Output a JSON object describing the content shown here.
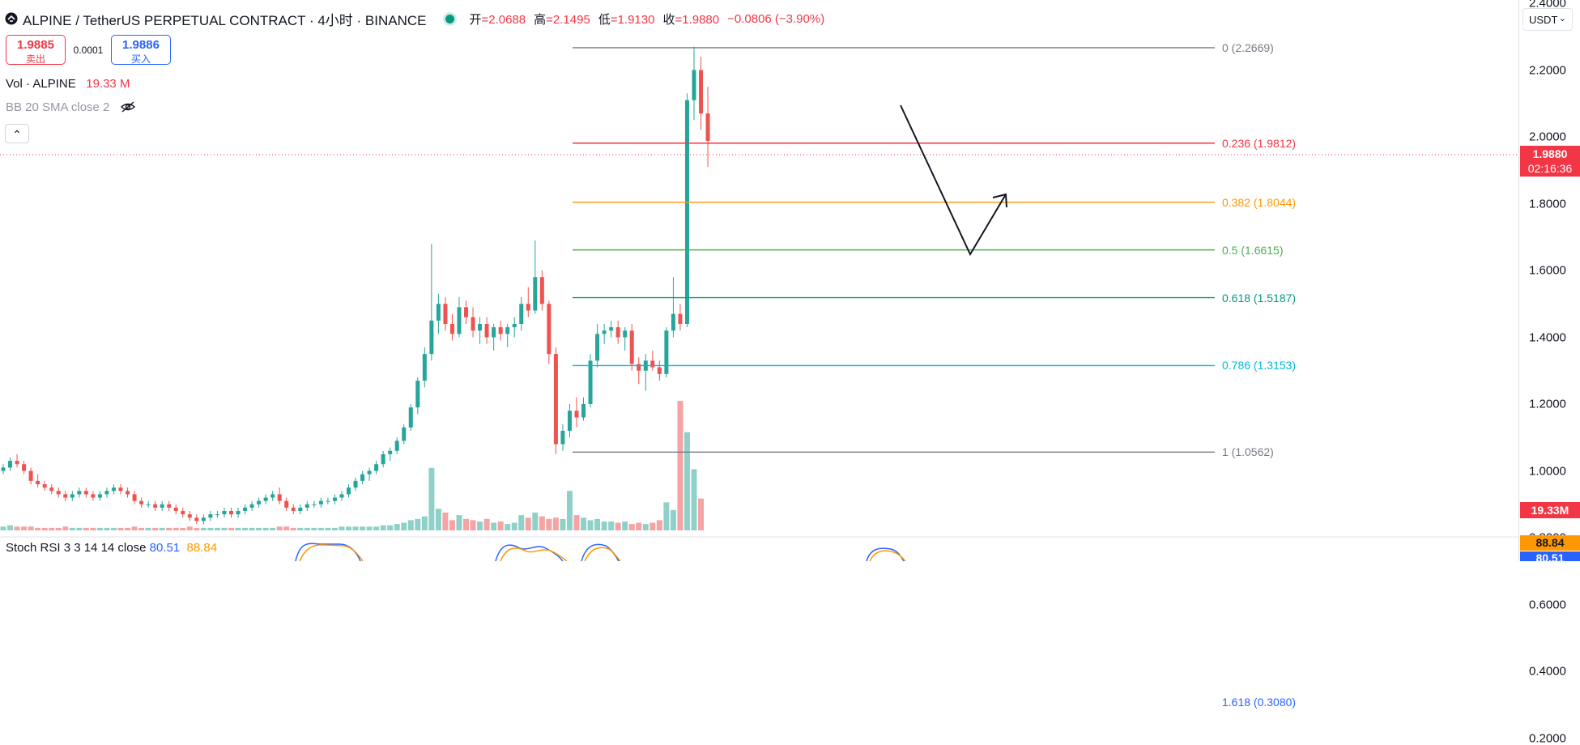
{
  "header": {
    "symbol_title": "ALPINE / TetherUS PERPETUAL CONTRACT · 4小时 · BINANCE",
    "open_label": "开",
    "open_value": "=2.0688",
    "high_label": "高",
    "high_value": "=2.1495",
    "low_label": "低",
    "low_value": "=1.9130",
    "close_label": "收",
    "close_value": "=1.9880",
    "change": "−0.0806 (−3.90%)",
    "status_color": "#089981"
  },
  "trade": {
    "sell_price": "1.9885",
    "sell_label": "卖出",
    "spread": "0.0001",
    "buy_price": "1.9886",
    "buy_label": "买入"
  },
  "indicators": {
    "vol_label": "Vol · ALPINE",
    "vol_value": "19.33 M",
    "bb_label": "BB 20 SMA close 2",
    "rsi_label": "Stoch RSI 3 3 14 14 close",
    "rsi_k": "80.51",
    "rsi_d": "88.84"
  },
  "currency_selector": "USDT",
  "y_axis": {
    "ticks": [
      "2.4000",
      "2.2000",
      "2.0000",
      "1.8000",
      "1.6000",
      "1.4000",
      "1.2000",
      "1.0000",
      "0.8000",
      "0.6000",
      "0.4000",
      "0.2000"
    ],
    "current_price": "1.9880",
    "countdown": "02:16:36",
    "volume_value": "19.33M",
    "rsi_d_value": "88.84",
    "rsi_k_value": "80.51"
  },
  "fib_levels": [
    {
      "ratio": "0",
      "price": "2.2669",
      "label": "0 (2.2669)",
      "color": "#787b86"
    },
    {
      "ratio": "0.236",
      "price": "1.9812",
      "label": "0.236 (1.9812)",
      "color": "#f23645"
    },
    {
      "ratio": "0.382",
      "price": "1.8044",
      "label": "0.382 (1.8044)",
      "color": "#ff9800"
    },
    {
      "ratio": "0.5",
      "price": "1.6615",
      "label": "0.5 (1.6615)",
      "color": "#4caf50"
    },
    {
      "ratio": "0.618",
      "price": "1.5187",
      "label": "0.618 (1.5187)",
      "color": "#089981"
    },
    {
      "ratio": "0.786",
      "price": "1.3153",
      "label": "0.786 (1.3153)",
      "color": "#00bcd4"
    },
    {
      "ratio": "1",
      "price": "1.0562",
      "label": "1 (1.0562)",
      "color": "#787b86"
    },
    {
      "ratio": "1.618",
      "price": "0.3080",
      "label": "1.618 (0.3080)",
      "color": "#2962ff"
    }
  ],
  "colors": {
    "up": "#26a69a",
    "down": "#ef5350",
    "vol_up": "#8fd1c8",
    "vol_down": "#f5a3a3"
  }
}
